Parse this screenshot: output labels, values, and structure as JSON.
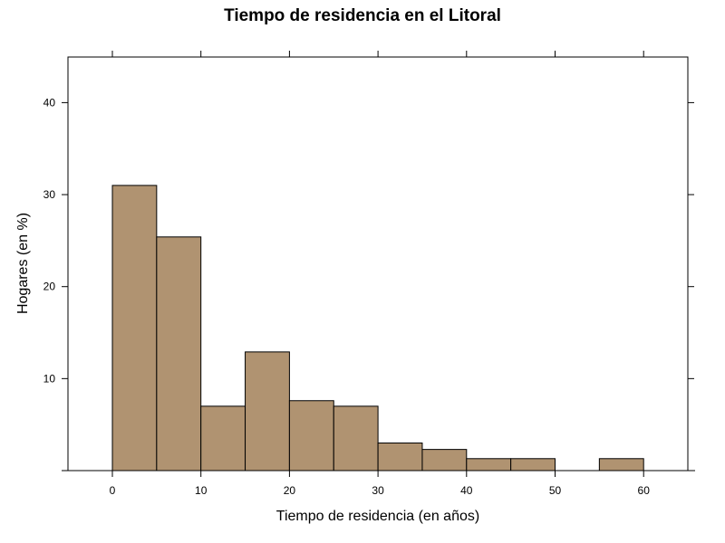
{
  "chart_data": {
    "type": "bar",
    "title": "Tiempo de residencia en el Litoral",
    "xlabel": "Tiempo de residencia (en años)",
    "ylabel": "Hogares (en %)",
    "bin_width": 5,
    "bins": [
      {
        "start": 0,
        "end": 5,
        "value": 31.0
      },
      {
        "start": 5,
        "end": 10,
        "value": 25.4
      },
      {
        "start": 10,
        "end": 15,
        "value": 7.0
      },
      {
        "start": 15,
        "end": 20,
        "value": 12.9
      },
      {
        "start": 20,
        "end": 25,
        "value": 7.6
      },
      {
        "start": 25,
        "end": 30,
        "value": 7.0
      },
      {
        "start": 30,
        "end": 35,
        "value": 3.0
      },
      {
        "start": 35,
        "end": 40,
        "value": 2.3
      },
      {
        "start": 40,
        "end": 45,
        "value": 1.3
      },
      {
        "start": 45,
        "end": 50,
        "value": 1.3
      },
      {
        "start": 50,
        "end": 55,
        "value": 0
      },
      {
        "start": 55,
        "end": 60,
        "value": 1.3
      }
    ],
    "xlim": [
      -5,
      65
    ],
    "ylim": [
      0,
      45
    ],
    "x_ticks": [
      0,
      10,
      20,
      30,
      40,
      50,
      60
    ],
    "y_ticks": [
      10,
      20,
      30,
      40
    ],
    "bar_color": "#b09371",
    "grid": false
  }
}
